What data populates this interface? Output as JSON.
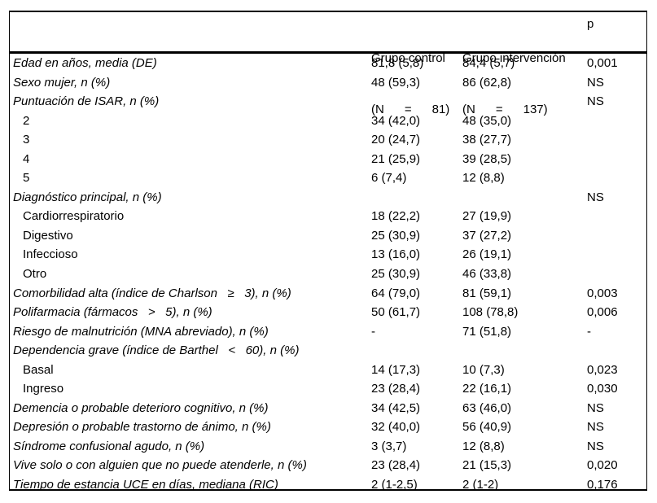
{
  "header": {
    "control_line1": "Grupo control",
    "control_line2": "(N      =      81)",
    "intervencion_line1": "Grupo intervención",
    "intervencion_line2": "(N      =      137)",
    "p": "p"
  },
  "rows": [
    {
      "label": "Edad en años, media (DE)",
      "italic": true,
      "indent": false,
      "control": "81,8 (5,8)",
      "intervencion": "84,4 (5,7)",
      "p": "0,001"
    },
    {
      "label": "Sexo mujer, n (%)",
      "italic": true,
      "indent": false,
      "control": "48 (59,3)",
      "intervencion": "86 (62,8)",
      "p": "NS"
    },
    {
      "label": "Puntuación de ISAR, n (%)",
      "italic": true,
      "indent": false,
      "control": "",
      "intervencion": "",
      "p": "NS"
    },
    {
      "label": "2",
      "italic": false,
      "indent": true,
      "control": "34 (42,0)",
      "intervencion": "48 (35,0)",
      "p": ""
    },
    {
      "label": "3",
      "italic": false,
      "indent": true,
      "control": "20 (24,7)",
      "intervencion": "38 (27,7)",
      "p": ""
    },
    {
      "label": "4",
      "italic": false,
      "indent": true,
      "control": "21 (25,9)",
      "intervencion": "39 (28,5)",
      "p": ""
    },
    {
      "label": "5",
      "italic": false,
      "indent": true,
      "control": "6 (7,4)",
      "intervencion": "12 (8,8)",
      "p": ""
    },
    {
      "label": "Diagnóstico principal, n (%)",
      "italic": true,
      "indent": false,
      "control": "",
      "intervencion": "",
      "p": "NS"
    },
    {
      "label": "Cardiorrespiratorio",
      "italic": false,
      "indent": true,
      "control": "18 (22,2)",
      "intervencion": "27 (19,9)",
      "p": ""
    },
    {
      "label": "Digestivo",
      "italic": false,
      "indent": true,
      "control": "25 (30,9)",
      "intervencion": "37 (27,2)",
      "p": ""
    },
    {
      "label": "Infeccioso",
      "italic": false,
      "indent": true,
      "control": "13 (16,0)",
      "intervencion": "26 (19,1)",
      "p": ""
    },
    {
      "label": "Otro",
      "italic": false,
      "indent": true,
      "control": "25 (30,9)",
      "intervencion": "46 (33,8)",
      "p": ""
    },
    {
      "label": "Comorbilidad alta (índice de Charlson   ≥   3), n (%)",
      "italic": true,
      "indent": false,
      "control": "64 (79,0)",
      "intervencion": "81 (59,1)",
      "p": "0,003"
    },
    {
      "label": "Polifarmacia (fármacos   >   5), n (%)",
      "italic": true,
      "indent": false,
      "control": "50 (61,7)",
      "intervencion": "108 (78,8)",
      "p": "0,006"
    },
    {
      "label": "Riesgo de malnutrición (MNA abreviado), n (%)",
      "italic": true,
      "indent": false,
      "control": "-",
      "intervencion": "71 (51,8)",
      "p": "-"
    },
    {
      "label": "Dependencia grave (índice de Barthel   <   60), n (%)",
      "italic": true,
      "indent": false,
      "control": "",
      "intervencion": "",
      "p": ""
    },
    {
      "label": "Basal",
      "italic": false,
      "indent": true,
      "control": "14 (17,3)",
      "intervencion": "10 (7,3)",
      "p": "0,023"
    },
    {
      "label": "Ingreso",
      "italic": false,
      "indent": true,
      "control": "23 (28,4)",
      "intervencion": "22 (16,1)",
      "p": "0,030"
    },
    {
      "label": "Demencia o probable deterioro cognitivo, n (%)",
      "italic": true,
      "indent": false,
      "control": "34 (42,5)",
      "intervencion": "63 (46,0)",
      "p": "NS"
    },
    {
      "label": "Depresión o probable trastorno de ánimo, n (%)",
      "italic": true,
      "indent": false,
      "control": "32 (40,0)",
      "intervencion": "56 (40,9)",
      "p": "NS"
    },
    {
      "label": "Síndrome confusional agudo, n (%)",
      "italic": true,
      "indent": false,
      "control": "3 (3,7)",
      "intervencion": "12 (8,8)",
      "p": "NS"
    },
    {
      "label": "Vive solo o con alguien que no puede atenderle, n (%)",
      "italic": true,
      "indent": false,
      "control": "23 (28,4)",
      "intervencion": "21 (15,3)",
      "p": "0,020"
    },
    {
      "label": "Tiempo de estancia UCE en días, mediana (RIC)",
      "italic": true,
      "indent": false,
      "control": "2 (1-2,5)",
      "intervencion": "2 (1-2)",
      "p": "0,176"
    }
  ]
}
